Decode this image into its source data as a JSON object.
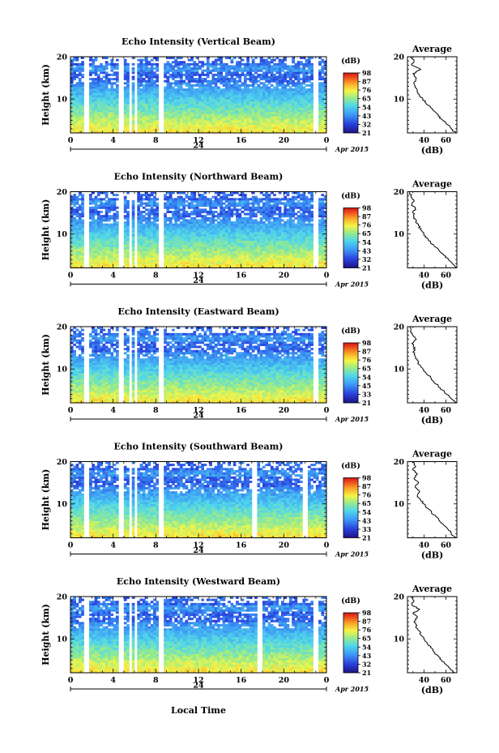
{
  "figure": {
    "month_label": "Apr 2015",
    "xlabel": "Local Time",
    "date_label": "24"
  },
  "chart_data": [
    {
      "type": "heatmap",
      "title": "Echo Intensity (Vertical Beam)",
      "xlabel": "Local Time",
      "ylabel": "Height (km)",
      "x_ticks": [
        "0",
        "4",
        "8",
        "12",
        "16",
        "20",
        "0"
      ],
      "xlim": [
        0,
        24
      ],
      "y_ticks": [
        "10",
        "20"
      ],
      "ylim": [
        2,
        20
      ],
      "colorbar": {
        "label": "(dB)",
        "ticks": [
          "21",
          "32",
          "43",
          "54",
          "65",
          "76",
          "87",
          "98"
        ],
        "range": [
          21,
          98
        ]
      },
      "data_gaps_hours": [
        [
          1.3,
          1.8
        ],
        [
          4.6,
          5.0
        ],
        [
          5.6,
          5.8
        ],
        [
          6.1,
          6.3
        ],
        [
          8.3,
          8.7
        ],
        [
          22.8,
          23.2
        ]
      ],
      "average_profile": {
        "title": "Average",
        "xlabel": "(dB)",
        "x_ticks": [
          "40",
          "60"
        ],
        "xlim": [
          25,
          70
        ],
        "y_ticks": [
          "10",
          "20"
        ],
        "heights_km": [
          2,
          3,
          4,
          5,
          6,
          7,
          8,
          9,
          10,
          11,
          12,
          13,
          14,
          15,
          16,
          17,
          18,
          19,
          20
        ],
        "values_db": [
          69,
          65,
          61,
          57,
          53,
          50,
          46,
          42,
          39,
          36,
          34,
          32,
          31,
          33,
          30,
          37,
          29,
          31,
          28
        ]
      }
    },
    {
      "type": "heatmap",
      "title": "Echo Intensity (Northward Beam)",
      "xlabel": "Local Time",
      "ylabel": "Height (km)",
      "x_ticks": [
        "0",
        "4",
        "8",
        "12",
        "16",
        "20",
        "0"
      ],
      "xlim": [
        0,
        24
      ],
      "y_ticks": [
        "10",
        "20"
      ],
      "ylim": [
        2,
        20
      ],
      "colorbar": {
        "label": "(dB)",
        "ticks": [
          "21",
          "32",
          "43",
          "54",
          "65",
          "76",
          "87",
          "98"
        ],
        "range": [
          21,
          98
        ]
      },
      "data_gaps_hours": [
        [
          1.3,
          1.7
        ],
        [
          4.6,
          5.0
        ],
        [
          5.6,
          5.8
        ],
        [
          6.1,
          6.3
        ],
        [
          8.3,
          8.7
        ],
        [
          22.8,
          23.2
        ]
      ],
      "average_profile": {
        "title": "Average",
        "xlabel": "(dB)",
        "x_ticks": [
          "40",
          "60"
        ],
        "xlim": [
          25,
          70
        ],
        "y_ticks": [
          "10",
          "20"
        ],
        "heights_km": [
          2,
          3,
          4,
          5,
          6,
          7,
          8,
          9,
          10,
          11,
          12,
          13,
          14,
          15,
          16,
          17,
          18,
          19,
          20
        ],
        "values_db": [
          70,
          66,
          62,
          58,
          54,
          50,
          46,
          43,
          40,
          37,
          35,
          33,
          31,
          30,
          32,
          29,
          31,
          28,
          27
        ]
      }
    },
    {
      "type": "heatmap",
      "title": "Echo Intensity (Eastward Beam)",
      "xlabel": "Local Time",
      "ylabel": "Height (km)",
      "x_ticks": [
        "0",
        "4",
        "8",
        "12",
        "16",
        "20",
        "0"
      ],
      "xlim": [
        0,
        24
      ],
      "y_ticks": [
        "10",
        "20"
      ],
      "ylim": [
        2,
        20
      ],
      "colorbar": {
        "label": "(dB)",
        "ticks": [
          "21",
          "33",
          "45",
          "54",
          "65",
          "76",
          "87",
          "98"
        ],
        "range": [
          21,
          98
        ]
      },
      "data_gaps_hours": [
        [
          1.3,
          1.7
        ],
        [
          4.6,
          5.0
        ],
        [
          5.6,
          5.8
        ],
        [
          6.1,
          6.3
        ],
        [
          8.3,
          8.7
        ],
        [
          22.8,
          23.2
        ]
      ],
      "average_profile": {
        "title": "Average",
        "xlabel": "(dB)",
        "x_ticks": [
          "40",
          "60"
        ],
        "xlim": [
          25,
          70
        ],
        "y_ticks": [
          "10",
          "20"
        ],
        "heights_km": [
          2,
          3,
          4,
          5,
          6,
          7,
          8,
          9,
          10,
          11,
          12,
          13,
          14,
          15,
          16,
          17,
          18,
          19,
          20
        ],
        "values_db": [
          70,
          65,
          61,
          57,
          53,
          49,
          46,
          42,
          39,
          36,
          34,
          32,
          30,
          32,
          29,
          33,
          30,
          28,
          27
        ]
      }
    },
    {
      "type": "heatmap",
      "title": "Echo Intensity (Southward Beam)",
      "xlabel": "Local Time",
      "ylabel": "Height (km)",
      "x_ticks": [
        "0",
        "4",
        "8",
        "12",
        "16",
        "20",
        "0"
      ],
      "xlim": [
        0,
        24
      ],
      "y_ticks": [
        "10",
        "20"
      ],
      "ylim": [
        2,
        20
      ],
      "colorbar": {
        "label": "(dB)",
        "ticks": [
          "21",
          "33",
          "43",
          "54",
          "65",
          "76",
          "87",
          "98"
        ],
        "range": [
          21,
          98
        ]
      },
      "data_gaps_hours": [
        [
          1.3,
          1.7
        ],
        [
          4.6,
          5.0
        ],
        [
          5.6,
          5.8
        ],
        [
          6.1,
          6.3
        ],
        [
          8.3,
          8.7
        ],
        [
          17.0,
          17.6
        ],
        [
          21.7,
          22.2
        ]
      ],
      "average_profile": {
        "title": "Average",
        "xlabel": "(dB)",
        "x_ticks": [
          "40",
          "60"
        ],
        "xlim": [
          25,
          70
        ],
        "y_ticks": [
          "10",
          "20"
        ],
        "heights_km": [
          2,
          3,
          4,
          5,
          6,
          7,
          8,
          9,
          10,
          11,
          12,
          13,
          14,
          15,
          16,
          17,
          18,
          19,
          20
        ],
        "values_db": [
          69,
          65,
          62,
          58,
          54,
          51,
          47,
          43,
          40,
          37,
          34,
          36,
          32,
          35,
          31,
          34,
          30,
          32,
          29
        ]
      }
    },
    {
      "type": "heatmap",
      "title": "Echo Intensity (Westward Beam)",
      "xlabel": "Local Time",
      "ylabel": "Height (km)",
      "x_ticks": [
        "0",
        "4",
        "8",
        "12",
        "16",
        "20",
        "0"
      ],
      "xlim": [
        0,
        24
      ],
      "y_ticks": [
        "10",
        "20"
      ],
      "ylim": [
        2,
        20
      ],
      "colorbar": {
        "label": "(dB)",
        "ticks": [
          "21",
          "32",
          "43",
          "54",
          "65",
          "76",
          "87",
          "98"
        ],
        "range": [
          21,
          98
        ]
      },
      "data_gaps_hours": [
        [
          1.3,
          1.7
        ],
        [
          4.6,
          5.0
        ],
        [
          5.6,
          5.8
        ],
        [
          6.1,
          6.3
        ],
        [
          8.3,
          8.7
        ],
        [
          17.6,
          18.1
        ],
        [
          22.8,
          23.2
        ]
      ],
      "average_profile": {
        "title": "Average",
        "xlabel": "(dB)",
        "x_ticks": [
          "40",
          "60"
        ],
        "xlim": [
          25,
          70
        ],
        "y_ticks": [
          "10",
          "20"
        ],
        "heights_km": [
          2,
          3,
          4,
          5,
          6,
          7,
          8,
          9,
          10,
          11,
          12,
          13,
          14,
          15,
          16,
          17,
          18,
          19,
          20
        ],
        "values_db": [
          68,
          64,
          60,
          56,
          53,
          49,
          46,
          43,
          40,
          37,
          35,
          33,
          31,
          34,
          30,
          36,
          29,
          31,
          28
        ]
      }
    }
  ]
}
